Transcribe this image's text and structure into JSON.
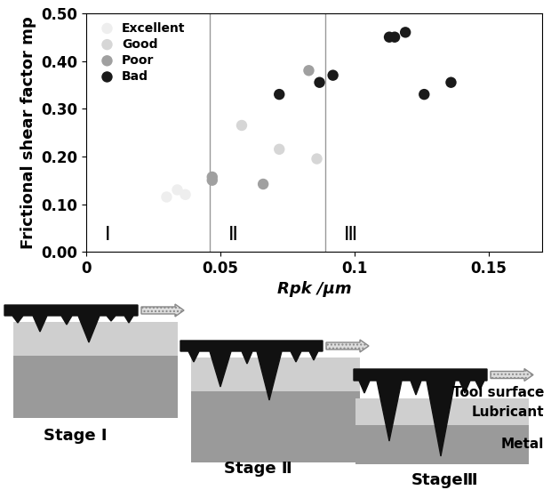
{
  "chart_data": {
    "type": "scatter",
    "xlabel": "Rpk /μm",
    "ylabel": "Frictional shear factor mp",
    "xlim": [
      0,
      0.17
    ],
    "ylim": [
      0,
      0.5
    ],
    "xticks": [
      0,
      0.05,
      0.1,
      0.15
    ],
    "yticks": [
      {
        "value": 0,
        "label": "0.00"
      },
      {
        "value": 0.1,
        "label": "0.10"
      },
      {
        "value": 0.2,
        "label": "0.20"
      },
      {
        "value": 0.3,
        "label": "0.30"
      },
      {
        "value": 0.4,
        "label": "0.40"
      },
      {
        "value": 0.5,
        "label": "0.50"
      }
    ],
    "legend": "upper left",
    "vertical_lines": [
      0.046,
      0.089
    ],
    "region_labels": [
      "Ⅰ",
      "Ⅱ",
      "Ⅲ"
    ],
    "series": [
      {
        "name": "Excellent",
        "color": "#eeeeee",
        "marker": "o",
        "x": [
          0.03,
          0.034,
          0.037
        ],
        "values": [
          0.115,
          0.13,
          0.12
        ]
      },
      {
        "name": "Good",
        "color": "#d6d6d6",
        "marker": "o",
        "x": [
          0.058,
          0.072,
          0.086
        ],
        "values": [
          0.265,
          0.215,
          0.195
        ]
      },
      {
        "name": "Poor",
        "color": "#a0a0a0",
        "marker": "o",
        "x": [
          0.047,
          0.047,
          0.066,
          0.083
        ],
        "values": [
          0.15,
          0.157,
          0.142,
          0.38
        ]
      },
      {
        "name": "Bad",
        "color": "#1a1a1a",
        "marker": "o",
        "x": [
          0.072,
          0.087,
          0.092,
          0.113,
          0.115,
          0.119,
          0.126,
          0.136
        ],
        "values": [
          0.33,
          0.355,
          0.37,
          0.45,
          0.45,
          0.46,
          0.33,
          0.355
        ]
      }
    ]
  },
  "diagram": {
    "stages": [
      "Stage Ⅰ",
      "Stage Ⅱ",
      "StageⅢ"
    ],
    "labels": {
      "tool": "Tool surface",
      "lubricant": "Lubricant",
      "metal": "Metal"
    }
  }
}
